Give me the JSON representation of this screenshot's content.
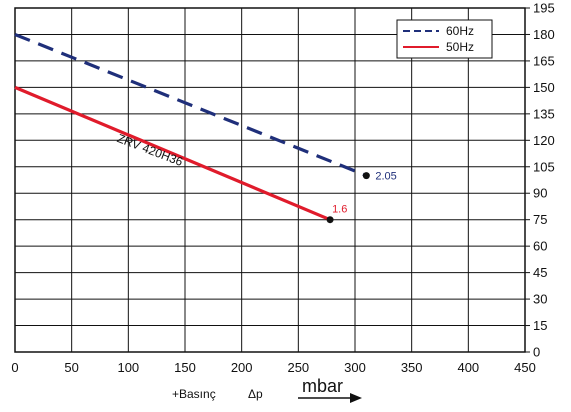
{
  "chart_data": {
    "type": "line",
    "xlim": [
      0,
      450
    ],
    "ylim": [
      0,
      195
    ],
    "x_ticks": [
      0,
      50,
      100,
      150,
      200,
      250,
      300,
      350,
      400,
      450
    ],
    "y_ticks": [
      0,
      15,
      30,
      45,
      60,
      75,
      90,
      105,
      120,
      135,
      150,
      165,
      180,
      195
    ],
    "y_axis_side": "right",
    "grid": true,
    "legend_position": "top-right",
    "series": [
      {
        "name": "60Hz",
        "color": "#1f2f7a",
        "dash": "dashed",
        "x": [
          0,
          310
        ],
        "y": [
          180,
          100
        ],
        "end_label": "2.05"
      },
      {
        "name": "50Hz",
        "color": "#e01b2b",
        "dash": "solid",
        "x": [
          0,
          278
        ],
        "y": [
          150,
          75
        ],
        "end_label": "1.6"
      }
    ],
    "annotation": "ZRV 420H36",
    "xlabel_left": "+Basınç",
    "xlabel_delta": "Δp",
    "xlabel_unit": "mbar"
  }
}
